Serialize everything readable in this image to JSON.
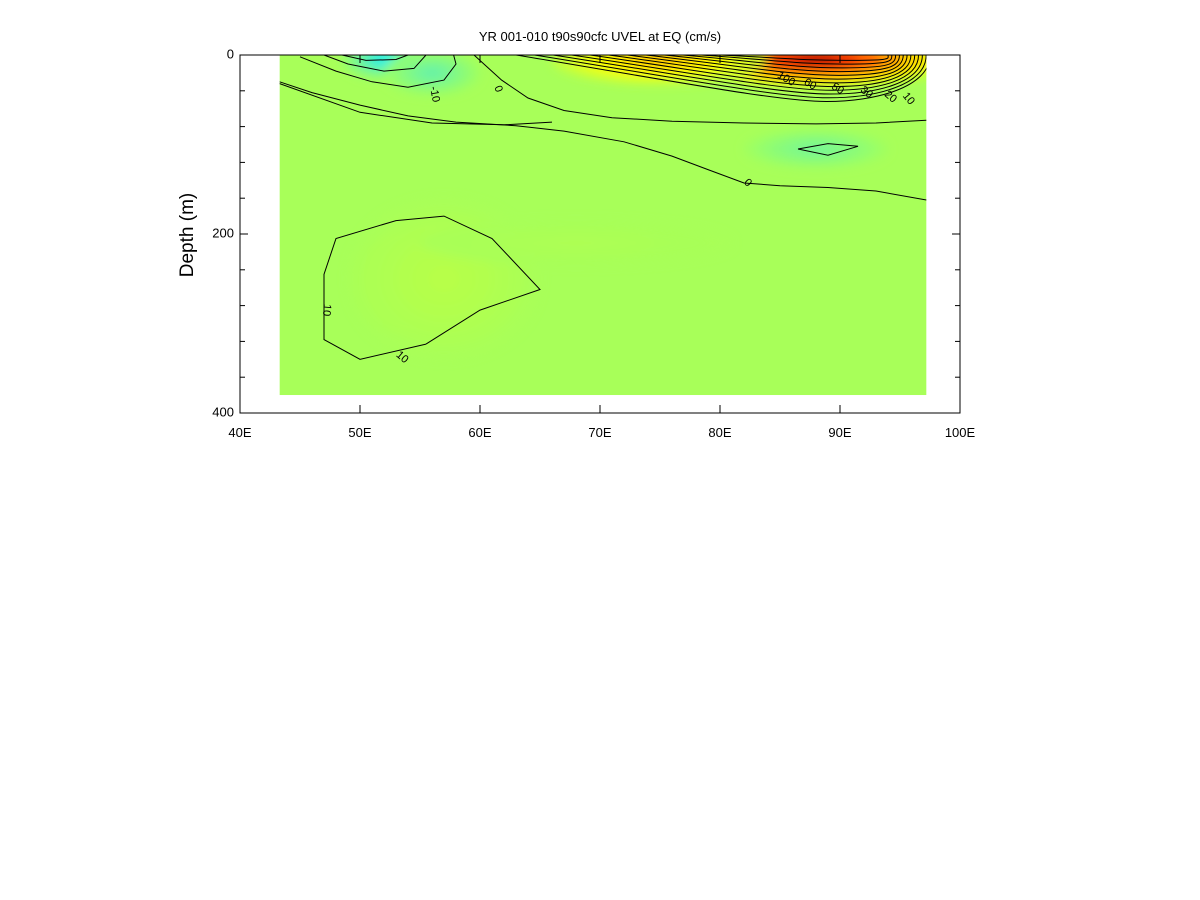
{
  "chart_data": {
    "type": "heatmap",
    "subtype": "filled-contour",
    "title": "YR 001-010 t90s90cfc UVEL at EQ (cm/s)",
    "xlabel": "",
    "ylabel": "Depth (m)",
    "xlim": [
      40,
      100
    ],
    "ylim": [
      0,
      400
    ],
    "y_inverted": true,
    "data_extent": {
      "lon": [
        43.3,
        97.2
      ],
      "depth": [
        0,
        380
      ]
    },
    "x_ticks": [
      {
        "value": 40,
        "label": "40E"
      },
      {
        "value": 50,
        "label": "50E"
      },
      {
        "value": 60,
        "label": "60E"
      },
      {
        "value": 70,
        "label": "70E"
      },
      {
        "value": 80,
        "label": "80E"
      },
      {
        "value": 90,
        "label": "90E"
      },
      {
        "value": 100,
        "label": "100E"
      }
    ],
    "y_ticks": [
      {
        "value": 0,
        "label": "0"
      },
      {
        "value": 200,
        "label": "200"
      },
      {
        "value": 400,
        "label": "400"
      }
    ],
    "y_minor_ticks": [
      40,
      80,
      120,
      160,
      240,
      280,
      320,
      360
    ],
    "colorscale": [
      "#00f0ff",
      "#60f0b0",
      "#98ff68",
      "#d6ff2a",
      "#ffff00",
      "#ffb000",
      "#ff3000",
      "#8a0000"
    ],
    "field_blobs": [
      {
        "lon": 88,
        "depth": 5,
        "value": 110,
        "rx": 11,
        "ry": 30
      },
      {
        "lon": 75,
        "depth": 5,
        "value": 45,
        "rx": 9,
        "ry": 28
      },
      {
        "lon": 52,
        "depth": 5,
        "value": -28,
        "rx": 3.5,
        "ry": 22
      },
      {
        "lon": 56,
        "depth": 20,
        "value": -14,
        "rx": 4,
        "ry": 25
      },
      {
        "lon": 88,
        "depth": 105,
        "value": -10,
        "rx": 6,
        "ry": 22
      },
      {
        "lon": 53,
        "depth": 255,
        "value": 14,
        "rx": 3.5,
        "ry": 55
      },
      {
        "lon": 57,
        "depth": 250,
        "value": 6,
        "rx": 8,
        "ry": 90
      },
      {
        "lon": 68,
        "depth": 210,
        "value": 4,
        "rx": 13,
        "ry": 25
      }
    ],
    "contour_lines": [
      {
        "level": 0,
        "label": "0",
        "points": [
          [
            43.3,
            30
          ],
          [
            46,
            42
          ],
          [
            50,
            56
          ],
          [
            54,
            68
          ],
          [
            58,
            75
          ],
          [
            63,
            79
          ],
          [
            67,
            85
          ],
          [
            72,
            97
          ],
          [
            76,
            113
          ],
          [
            79,
            128
          ],
          [
            82,
            143
          ],
          [
            85,
            146
          ],
          [
            89,
            148
          ],
          [
            93,
            152
          ],
          [
            97.2,
            162
          ]
        ]
      },
      {
        "level": 0,
        "label": "",
        "points": [
          [
            43.3,
            32
          ],
          [
            50,
            64
          ],
          [
            56,
            76
          ],
          [
            62,
            78
          ],
          [
            66,
            75
          ]
        ]
      },
      {
        "level": 0,
        "label": "0",
        "points": [
          [
            59.5,
            0
          ],
          [
            61.8,
            28
          ],
          [
            64,
            48
          ],
          [
            67,
            62
          ],
          [
            71,
            70
          ],
          [
            76,
            74
          ],
          [
            82,
            76
          ],
          [
            88,
            77
          ],
          [
            93,
            76
          ],
          [
            97.2,
            73
          ]
        ]
      },
      {
        "level": -10,
        "label": "-10",
        "points": [
          [
            45,
            2
          ],
          [
            48,
            18
          ],
          [
            51,
            30
          ],
          [
            54,
            36
          ],
          [
            57,
            28
          ],
          [
            58,
            10
          ],
          [
            57.8,
            0
          ]
        ]
      },
      {
        "level": -20,
        "label": "",
        "points": [
          [
            47,
            0
          ],
          [
            49,
            10
          ],
          [
            52,
            18
          ],
          [
            54.5,
            15
          ],
          [
            55.5,
            0
          ]
        ]
      },
      {
        "level": -30,
        "label": "",
        "points": [
          [
            48.5,
            0
          ],
          [
            50.5,
            6
          ],
          [
            53,
            5
          ],
          [
            54,
            0
          ]
        ]
      },
      {
        "level": -10,
        "label": "",
        "points": [
          [
            86.5,
            105
          ],
          [
            89,
            99
          ],
          [
            91.5,
            102
          ],
          [
            89,
            112
          ],
          [
            86.5,
            105
          ]
        ]
      },
      {
        "level": 10,
        "label": "10",
        "points": [
          [
            55.5,
            323
          ],
          [
            50,
            340
          ],
          [
            47,
            318
          ],
          [
            47,
            245
          ],
          [
            48,
            205
          ],
          [
            53,
            185
          ],
          [
            57,
            180
          ],
          [
            61,
            205
          ],
          [
            65,
            262
          ],
          [
            60,
            285
          ],
          [
            55.5,
            323
          ]
        ]
      }
    ],
    "top_contour_levels": [
      10,
      20,
      30,
      40,
      50,
      60,
      70,
      80,
      90,
      100,
      110,
      120
    ],
    "contour_labels": [
      {
        "text": "-10",
        "lon": 56.2,
        "depth": 44,
        "angle": 80
      },
      {
        "text": "0",
        "lon": 61.5,
        "depth": 38,
        "angle": 70
      },
      {
        "text": "0",
        "lon": 82.3,
        "depth": 143,
        "angle": 45
      },
      {
        "text": "10",
        "lon": 47.2,
        "depth": 285,
        "angle": 95
      },
      {
        "text": "10",
        "lon": 53.5,
        "depth": 338,
        "angle": 40
      },
      {
        "text": "100",
        "lon": 85.5,
        "depth": 27,
        "angle": 30
      },
      {
        "text": "60",
        "lon": 87.5,
        "depth": 33,
        "angle": 30
      },
      {
        "text": "50",
        "lon": 89.8,
        "depth": 38,
        "angle": 32
      },
      {
        "text": "30",
        "lon": 92.2,
        "depth": 42,
        "angle": 38
      },
      {
        "text": "20",
        "lon": 94.2,
        "depth": 47,
        "angle": 40
      },
      {
        "text": "10",
        "lon": 95.7,
        "depth": 49,
        "angle": 50
      }
    ]
  }
}
